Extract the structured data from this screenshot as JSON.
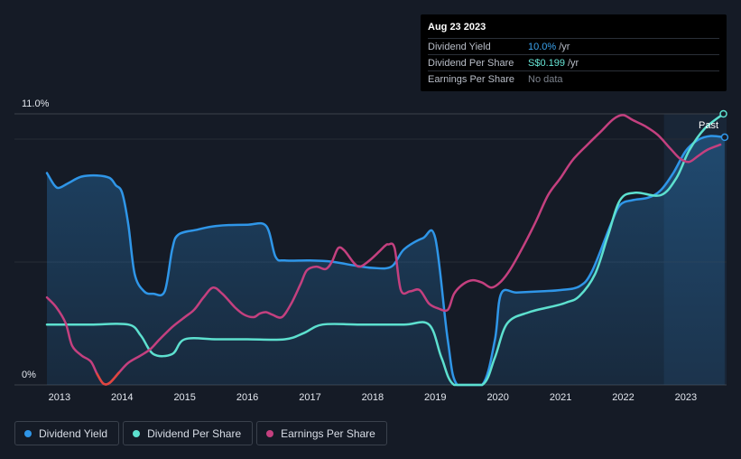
{
  "tooltip": {
    "date": "Aug 23 2023",
    "rows": [
      {
        "name": "Dividend Yield",
        "value": "10.0%",
        "unit": "/yr"
      },
      {
        "name": "Dividend Per Share",
        "value": "S$0.199",
        "unit": "/yr"
      },
      {
        "name": "Earnings Per Share",
        "value": "No data",
        "unit": ""
      }
    ]
  },
  "legend": [
    {
      "label": "Dividend Yield",
      "color": "#2f96e8"
    },
    {
      "label": "Dividend Per Share",
      "color": "#5de0cf"
    },
    {
      "label": "Earnings Per Share",
      "color": "#c4407f"
    }
  ],
  "past_label": "Past",
  "chart_data": {
    "type": "line",
    "y_axis": {
      "top_label": "11.0%",
      "bottom_label": "0%",
      "range": [
        0,
        11
      ]
    },
    "x_ticks": [
      "2013",
      "2014",
      "2015",
      "2016",
      "2017",
      "2018",
      "2019",
      "2020",
      "2021",
      "2022",
      "2023"
    ],
    "x_range": [
      2012.8,
      2023.65
    ],
    "forecast_shade_start": 2022.65,
    "series": [
      {
        "name": "Dividend Yield",
        "color": "#2f96e8",
        "filled": true,
        "points": [
          [
            2012.8,
            8.6
          ],
          [
            2012.92,
            8.1
          ],
          [
            2013.0,
            8.0
          ],
          [
            2013.15,
            8.2
          ],
          [
            2013.35,
            8.45
          ],
          [
            2013.6,
            8.5
          ],
          [
            2013.8,
            8.4
          ],
          [
            2013.9,
            8.1
          ],
          [
            2014.0,
            7.8
          ],
          [
            2014.1,
            6.5
          ],
          [
            2014.2,
            4.5
          ],
          [
            2014.35,
            3.8
          ],
          [
            2014.5,
            3.7
          ],
          [
            2014.68,
            3.8
          ],
          [
            2014.8,
            5.5
          ],
          [
            2014.9,
            6.1
          ],
          [
            2015.2,
            6.3
          ],
          [
            2015.5,
            6.45
          ],
          [
            2016.0,
            6.5
          ],
          [
            2016.3,
            6.45
          ],
          [
            2016.45,
            5.2
          ],
          [
            2016.6,
            5.05
          ],
          [
            2017.0,
            5.05
          ],
          [
            2017.35,
            5.0
          ],
          [
            2017.7,
            4.85
          ],
          [
            2018.0,
            4.75
          ],
          [
            2018.3,
            4.8
          ],
          [
            2018.5,
            5.5
          ],
          [
            2018.8,
            5.95
          ],
          [
            2019.0,
            5.95
          ],
          [
            2019.2,
            1.8
          ],
          [
            2019.35,
            0.0
          ],
          [
            2019.75,
            0.0
          ],
          [
            2019.95,
            1.8
          ],
          [
            2020.05,
            3.7
          ],
          [
            2020.3,
            3.75
          ],
          [
            2020.7,
            3.8
          ],
          [
            2021.0,
            3.85
          ],
          [
            2021.3,
            4.0
          ],
          [
            2021.5,
            4.6
          ],
          [
            2021.8,
            6.5
          ],
          [
            2021.95,
            7.3
          ],
          [
            2022.15,
            7.5
          ],
          [
            2022.4,
            7.6
          ],
          [
            2022.6,
            7.9
          ],
          [
            2022.8,
            8.6
          ],
          [
            2023.0,
            9.5
          ],
          [
            2023.2,
            9.95
          ],
          [
            2023.4,
            10.1
          ],
          [
            2023.62,
            10.05
          ]
        ]
      },
      {
        "name": "Dividend Per Share",
        "color": "#5de0cf",
        "filled": false,
        "points": [
          [
            2012.8,
            2.45
          ],
          [
            2013.5,
            2.45
          ],
          [
            2014.1,
            2.45
          ],
          [
            2014.3,
            2.0
          ],
          [
            2014.5,
            1.25
          ],
          [
            2014.8,
            1.25
          ],
          [
            2015.0,
            1.85
          ],
          [
            2015.5,
            1.85
          ],
          [
            2016.0,
            1.85
          ],
          [
            2016.6,
            1.85
          ],
          [
            2016.9,
            2.1
          ],
          [
            2017.2,
            2.45
          ],
          [
            2017.8,
            2.45
          ],
          [
            2018.5,
            2.45
          ],
          [
            2018.9,
            2.45
          ],
          [
            2019.1,
            1.1
          ],
          [
            2019.3,
            0.0
          ],
          [
            2019.75,
            0.0
          ],
          [
            2019.95,
            1.1
          ],
          [
            2020.15,
            2.5
          ],
          [
            2020.5,
            2.95
          ],
          [
            2020.9,
            3.2
          ],
          [
            2021.1,
            3.35
          ],
          [
            2021.3,
            3.6
          ],
          [
            2021.55,
            4.5
          ],
          [
            2021.75,
            6.0
          ],
          [
            2021.95,
            7.5
          ],
          [
            2022.2,
            7.8
          ],
          [
            2022.6,
            7.7
          ],
          [
            2022.85,
            8.4
          ],
          [
            2023.05,
            9.5
          ],
          [
            2023.3,
            10.4
          ],
          [
            2023.6,
            11.0
          ]
        ]
      },
      {
        "name": "Earnings Per Share",
        "color": "#c4407f",
        "negative_color": "#e0463f",
        "filled": false,
        "points": [
          [
            2012.8,
            3.55
          ],
          [
            2012.95,
            3.15
          ],
          [
            2013.1,
            2.5
          ],
          [
            2013.2,
            1.6
          ],
          [
            2013.35,
            1.2
          ],
          [
            2013.5,
            0.95
          ],
          [
            2013.6,
            0.45
          ],
          [
            2013.7,
            0.05
          ],
          [
            2013.8,
            0.08
          ],
          [
            2013.95,
            0.5
          ],
          [
            2014.1,
            0.9
          ],
          [
            2014.3,
            1.2
          ],
          [
            2014.45,
            1.45
          ],
          [
            2014.6,
            1.85
          ],
          [
            2014.8,
            2.35
          ],
          [
            2015.0,
            2.75
          ],
          [
            2015.15,
            3.05
          ],
          [
            2015.3,
            3.55
          ],
          [
            2015.45,
            3.95
          ],
          [
            2015.6,
            3.7
          ],
          [
            2015.8,
            3.15
          ],
          [
            2015.95,
            2.85
          ],
          [
            2016.1,
            2.75
          ],
          [
            2016.2,
            2.9
          ],
          [
            2016.3,
            2.95
          ],
          [
            2016.4,
            2.85
          ],
          [
            2016.55,
            2.75
          ],
          [
            2016.7,
            3.3
          ],
          [
            2016.85,
            4.1
          ],
          [
            2016.95,
            4.65
          ],
          [
            2017.1,
            4.8
          ],
          [
            2017.25,
            4.7
          ],
          [
            2017.35,
            5.0
          ],
          [
            2017.45,
            5.55
          ],
          [
            2017.55,
            5.45
          ],
          [
            2017.7,
            4.95
          ],
          [
            2017.8,
            4.8
          ],
          [
            2017.95,
            5.05
          ],
          [
            2018.1,
            5.4
          ],
          [
            2018.2,
            5.65
          ],
          [
            2018.25,
            5.7
          ],
          [
            2018.35,
            5.55
          ],
          [
            2018.45,
            3.85
          ],
          [
            2018.6,
            3.8
          ],
          [
            2018.75,
            3.85
          ],
          [
            2018.9,
            3.3
          ],
          [
            2019.05,
            3.1
          ],
          [
            2019.2,
            3.05
          ],
          [
            2019.3,
            3.7
          ],
          [
            2019.45,
            4.1
          ],
          [
            2019.6,
            4.25
          ],
          [
            2019.75,
            4.15
          ],
          [
            2019.9,
            3.95
          ],
          [
            2020.05,
            4.2
          ],
          [
            2020.2,
            4.7
          ],
          [
            2020.4,
            5.6
          ],
          [
            2020.6,
            6.6
          ],
          [
            2020.8,
            7.7
          ],
          [
            2021.0,
            8.4
          ],
          [
            2021.2,
            9.15
          ],
          [
            2021.45,
            9.8
          ],
          [
            2021.65,
            10.3
          ],
          [
            2021.85,
            10.8
          ],
          [
            2022.0,
            10.95
          ],
          [
            2022.15,
            10.75
          ],
          [
            2022.35,
            10.5
          ],
          [
            2022.55,
            10.15
          ],
          [
            2022.75,
            9.6
          ],
          [
            2022.9,
            9.2
          ],
          [
            2023.05,
            9.05
          ],
          [
            2023.2,
            9.3
          ],
          [
            2023.35,
            9.55
          ],
          [
            2023.55,
            9.75
          ]
        ]
      }
    ]
  }
}
